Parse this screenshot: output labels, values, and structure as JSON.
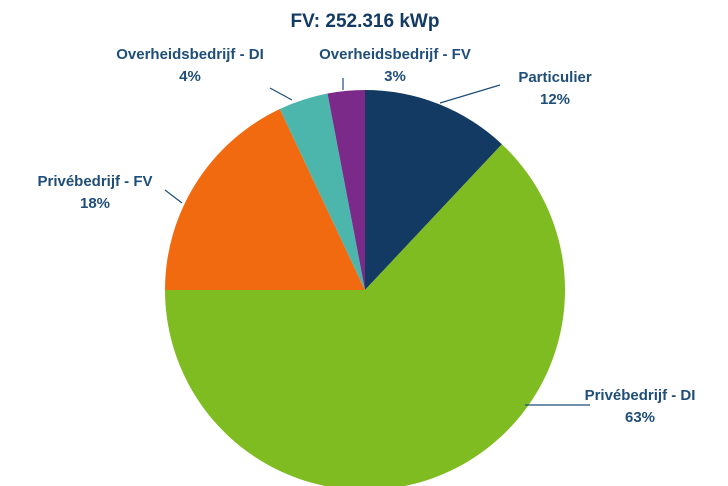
{
  "chart_data": {
    "type": "pie",
    "title": "FV: 252.316 kWp",
    "categories": [
      "Particulier",
      "Privébedrijf - DI",
      "Privébedrijf - FV",
      "Overheidsbedrijf - DI",
      "Overheidsbedrijf - FV"
    ],
    "values": [
      12,
      63,
      18,
      4,
      3
    ],
    "value_labels": [
      "12%",
      "63%",
      "18%",
      "4%",
      "3%"
    ],
    "colors": [
      "#133a63",
      "#7fbc22",
      "#f26a10",
      "#4db6ac",
      "#7b2a8a"
    ]
  }
}
